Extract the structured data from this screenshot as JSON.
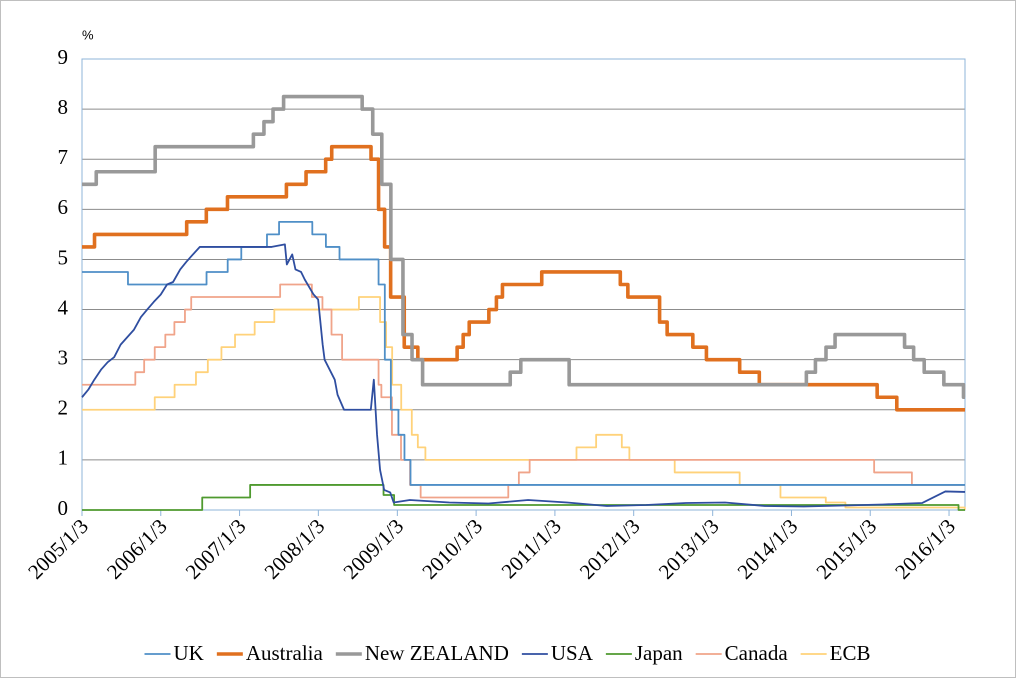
{
  "chart_data": {
    "type": "line",
    "y_unit": "%",
    "xlim": [
      "2005/1/3",
      "2016/3/17"
    ],
    "xticks": [
      "2005/1/3",
      "2006/1/3",
      "2007/1/3",
      "2008/1/3",
      "2009/1/3",
      "2010/1/3",
      "2011/1/3",
      "2012/1/3",
      "2013/1/3",
      "2014/1/3",
      "2015/1/3",
      "2016/1/3"
    ],
    "ylim": [
      0,
      9
    ],
    "yticks": [
      0,
      1,
      2,
      3,
      4,
      5,
      6,
      7,
      8,
      9
    ],
    "grid": true,
    "legend": "bottom",
    "series": [
      {
        "name": "UK",
        "color": "#4f8fc7",
        "step": true,
        "x": [
          "2005/1/3",
          "2005/8/4",
          "2006/8/3",
          "2006/11/9",
          "2007/1/11",
          "2007/5/10",
          "2007/7/5",
          "2007/12/6",
          "2008/2/7",
          "2008/4/10",
          "2008/10/8",
          "2008/11/6",
          "2008/12/4",
          "2009/1/8",
          "2009/2/5",
          "2009/3/5",
          "2016/3/17"
        ],
        "values": [
          4.75,
          4.5,
          4.75,
          5.0,
          5.25,
          5.5,
          5.75,
          5.5,
          5.25,
          5.0,
          4.5,
          3.0,
          2.0,
          1.5,
          1.0,
          0.5,
          0.5
        ]
      },
      {
        "name": "Australia",
        "color": "#e0701f",
        "step": true,
        "x": [
          "2005/1/3",
          "2005/3/2",
          "2006/5/3",
          "2006/8/2",
          "2006/11/8",
          "2007/8/8",
          "2007/11/7",
          "2008/2/6",
          "2008/3/5",
          "2008/9/3",
          "2008/10/8",
          "2008/11/5",
          "2008/12/3",
          "2009/2/4",
          "2009/4/8",
          "2009/10/7",
          "2009/11/4",
          "2009/12/2",
          "2010/3/3",
          "2010/4/7",
          "2010/5/5",
          "2010/11/3",
          "2011/11/2",
          "2011/12/7",
          "2012/5/2",
          "2012/6/6",
          "2012/10/3",
          "2012/12/5",
          "2013/5/8",
          "2013/8/7",
          "2015/2/4",
          "2015/5/6",
          "2016/3/17"
        ],
        "values": [
          5.25,
          5.5,
          5.75,
          6.0,
          6.25,
          6.5,
          6.75,
          7.0,
          7.25,
          7.0,
          6.0,
          5.25,
          4.25,
          3.25,
          3.0,
          3.25,
          3.5,
          3.75,
          4.0,
          4.25,
          4.5,
          4.75,
          4.5,
          4.25,
          3.75,
          3.5,
          3.25,
          3.0,
          2.75,
          2.5,
          2.25,
          2.0,
          2.0
        ]
      },
      {
        "name": "New ZEALAND",
        "color": "#999999",
        "step": true,
        "x": [
          "2005/1/3",
          "2005/3/10",
          "2005/12/8",
          "2007/3/8",
          "2007/4/26",
          "2007/6/7",
          "2007/7/26",
          "2008/7/24",
          "2008/9/11",
          "2008/10/23",
          "2008/12/4",
          "2009/1/29",
          "2009/3/12",
          "2009/4/30",
          "2010/6/10",
          "2010/7/29",
          "2011/3/10",
          "2014/3/13",
          "2014/4/24",
          "2014/6/12",
          "2014/7/24",
          "2015/6/11",
          "2015/7/23",
          "2015/9/10",
          "2015/12/10",
          "2016/3/10",
          "2016/3/17"
        ],
        "values": [
          6.5,
          6.75,
          7.25,
          7.5,
          7.75,
          8.0,
          8.25,
          8.0,
          7.5,
          6.5,
          5.0,
          3.5,
          3.0,
          2.5,
          2.75,
          3.0,
          2.5,
          2.75,
          3.0,
          3.25,
          3.5,
          3.25,
          3.0,
          2.75,
          2.5,
          2.25,
          2.25
        ]
      },
      {
        "name": "USA",
        "color": "#2f4ea0",
        "step": false,
        "x": [
          "2005/1/3",
          "2005/2/1",
          "2005/3/1",
          "2005/4/1",
          "2005/5/2",
          "2005/6/1",
          "2005/7/1",
          "2005/8/1",
          "2005/9/1",
          "2005/10/3",
          "2005/11/1",
          "2005/12/1",
          "2006/1/3",
          "2006/2/1",
          "2006/3/1",
          "2006/4/3",
          "2006/5/1",
          "2006/6/1",
          "2006/7/3",
          "2006/9/1",
          "2006/12/1",
          "2007/3/1",
          "2007/6/1",
          "2007/8/1",
          "2007/8/10",
          "2007/9/4",
          "2007/9/19",
          "2007/10/15",
          "2007/11/1",
          "2007/12/12",
          "2008/1/2",
          "2008/1/23",
          "2008/2/1",
          "2008/3/19",
          "2008/4/1",
          "2008/5/1",
          "2008/6/2",
          "2008/7/1",
          "2008/8/1",
          "2008/9/2",
          "2008/9/16",
          "2008/10/1",
          "2008/10/15",
          "2008/11/3",
          "2008/12/1",
          "2008/12/17",
          "2009/3/2",
          "2009/9/1",
          "2010/3/1",
          "2010/9/1",
          "2011/3/1",
          "2011/9/1",
          "2012/3/1",
          "2012/9/1",
          "2013/3/1",
          "2013/9/1",
          "2014/3/1",
          "2014/9/1",
          "2015/3/2",
          "2015/9/1",
          "2015/12/17",
          "2016/3/17"
        ],
        "values": [
          2.25,
          2.4,
          2.6,
          2.8,
          2.95,
          3.05,
          3.3,
          3.45,
          3.6,
          3.85,
          4.0,
          4.15,
          4.3,
          4.5,
          4.55,
          4.8,
          4.95,
          5.1,
          5.25,
          5.25,
          5.25,
          5.25,
          5.25,
          5.3,
          4.9,
          5.1,
          4.8,
          4.75,
          4.6,
          4.3,
          4.2,
          3.3,
          3.0,
          2.6,
          2.3,
          2.0,
          2.0,
          2.0,
          2.0,
          2.0,
          2.6,
          1.5,
          0.8,
          0.4,
          0.35,
          0.15,
          0.2,
          0.15,
          0.13,
          0.2,
          0.15,
          0.08,
          0.1,
          0.14,
          0.15,
          0.08,
          0.07,
          0.09,
          0.11,
          0.14,
          0.37,
          0.36
        ]
      },
      {
        "name": "Japan",
        "color": "#4f9a2f",
        "step": true,
        "x": [
          "2005/1/3",
          "2006/7/14",
          "2007/2/21",
          "2008/10/31",
          "2008/12/19",
          "2016/2/16",
          "2016/3/17"
        ],
        "values": [
          0.0,
          0.25,
          0.5,
          0.3,
          0.1,
          0.0,
          0.0
        ]
      },
      {
        "name": "Canada",
        "color": "#f0a48a",
        "step": true,
        "x": [
          "2005/1/3",
          "2005/9/7",
          "2005/10/18",
          "2005/12/6",
          "2006/1/24",
          "2006/3/7",
          "2006/4/25",
          "2006/5/24",
          "2007/7/10",
          "2007/12/4",
          "2008/1/22",
          "2008/3/4",
          "2008/4/22",
          "2008/10/8",
          "2008/10/21",
          "2008/12/9",
          "2009/1/20",
          "2009/3/3",
          "2009/4/21",
          "2010/6/1",
          "2010/7/20",
          "2010/9/8",
          "2015/1/21",
          "2015/7/15",
          "2016/3/17"
        ],
        "values": [
          2.5,
          2.75,
          3.0,
          3.25,
          3.5,
          3.75,
          4.0,
          4.25,
          4.5,
          4.25,
          4.0,
          3.5,
          3.0,
          2.5,
          2.25,
          1.5,
          1.0,
          0.5,
          0.25,
          0.5,
          0.75,
          1.0,
          0.75,
          0.5,
          0.5
        ]
      },
      {
        "name": "ECB",
        "color": "#ffd27a",
        "step": true,
        "x": [
          "2005/1/3",
          "2005/12/6",
          "2006/3/8",
          "2006/6/15",
          "2006/8/9",
          "2006/10/11",
          "2006/12/13",
          "2007/3/14",
          "2007/6/13",
          "2008/7/9",
          "2008/10/15",
          "2008/11/12",
          "2008/12/10",
          "2009/1/21",
          "2009/3/11",
          "2009/4/8",
          "2009/5/13",
          "2011/4/13",
          "2011/7/13",
          "2011/11/9",
          "2011/12/14",
          "2012/7/11",
          "2013/5/8",
          "2013/11/13",
          "2014/6/11",
          "2014/9/10",
          "2016/3/16",
          "2016/3/17"
        ],
        "values": [
          2.0,
          2.25,
          2.5,
          2.75,
          3.0,
          3.25,
          3.5,
          3.75,
          4.0,
          4.25,
          3.75,
          3.25,
          2.5,
          2.0,
          1.5,
          1.25,
          1.0,
          1.25,
          1.5,
          1.25,
          1.0,
          0.75,
          0.5,
          0.25,
          0.15,
          0.05,
          0.0,
          0.0
        ]
      }
    ]
  }
}
